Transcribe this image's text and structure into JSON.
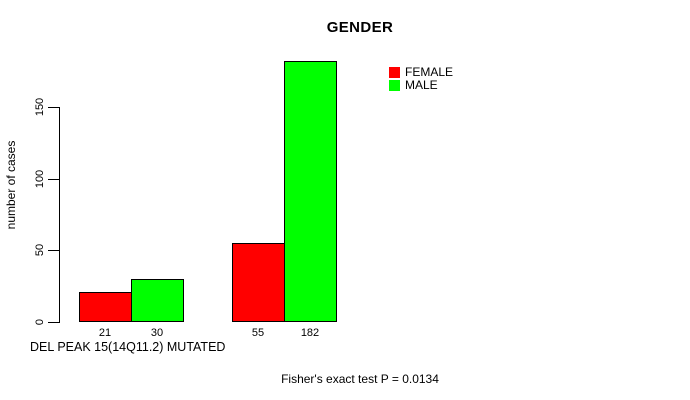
{
  "annotation": "Fisher's exact test P = 0.0134",
  "chart_data": {
    "type": "bar",
    "title": "GENDER",
    "xlabel": "DEL PEAK 15(14Q11.2) MUTATED",
    "ylabel": "number of cases",
    "categories": [
      "",
      ""
    ],
    "series": [
      {
        "name": "FEMALE",
        "color": "#ff0000",
        "values": [
          21,
          55
        ]
      },
      {
        "name": "MALE",
        "color": "#00ff00",
        "values": [
          30,
          182
        ]
      }
    ],
    "yticks": [
      0,
      50,
      100,
      150
    ],
    "ylim": [
      0,
      185
    ],
    "grid": false,
    "legend_position": "top-right",
    "show_values_under_bars": true,
    "annotation": "Fisher's exact test P = 0.0134",
    "background_color": "#ffffff",
    "axis_color": "#000000"
  }
}
